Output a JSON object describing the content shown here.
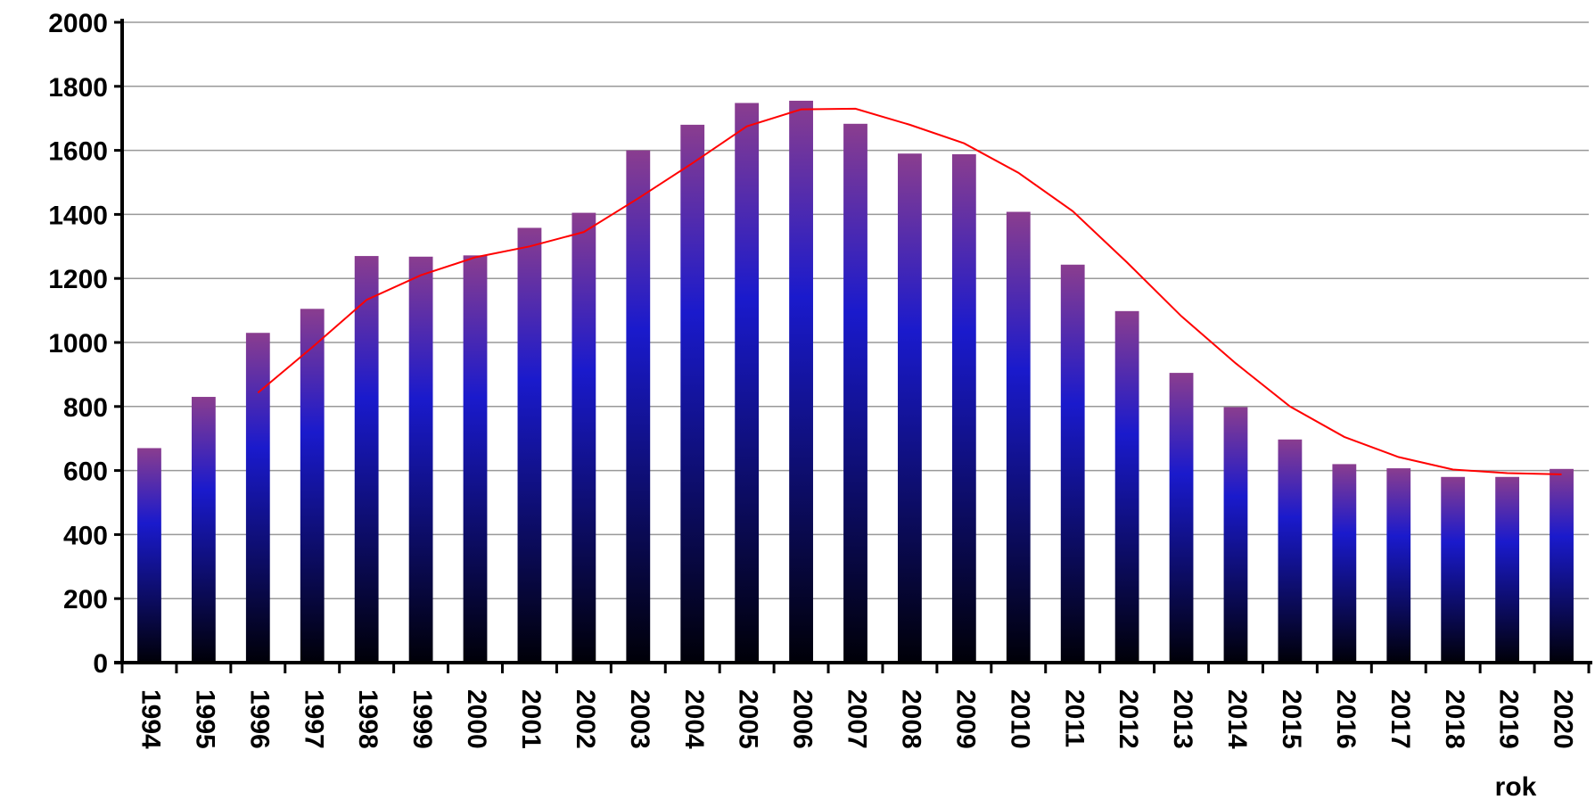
{
  "chart_data": {
    "type": "bar",
    "x_label": "rok",
    "categories": [
      "1994",
      "1995",
      "1996",
      "1997",
      "1998",
      "1999",
      "2000",
      "2001",
      "2002",
      "2003",
      "2004",
      "2005",
      "2006",
      "2007",
      "2008",
      "2009",
      "2010",
      "2011",
      "2012",
      "2013",
      "2014",
      "2015",
      "2016",
      "2017",
      "2018",
      "2019",
      "2020"
    ],
    "series": [
      {
        "type": "bar",
        "color": "#1a1acc",
        "values": [
          670,
          830,
          1030,
          1105,
          1270,
          1268,
          1272,
          1358,
          1405,
          1600,
          1680,
          1748,
          1755,
          1683,
          1590,
          1588,
          1408,
          1243,
          1098,
          905,
          798,
          697,
          620,
          607,
          580,
          580,
          605
        ]
      },
      {
        "type": "line",
        "color": "#ff0000",
        "values": [
          null,
          null,
          843,
          985,
          1133,
          1210,
          1266,
          1300,
          1345,
          1450,
          1560,
          1675,
          1728,
          1730,
          1680,
          1622,
          1530,
          1410,
          1250,
          1082,
          935,
          800,
          705,
          642,
          603,
          592,
          588
        ]
      }
    ],
    "ylim": [
      0,
      2000
    ],
    "yticks": [
      0,
      200,
      400,
      600,
      800,
      1000,
      1200,
      1400,
      1600,
      1800,
      2000
    ],
    "grid": true
  }
}
